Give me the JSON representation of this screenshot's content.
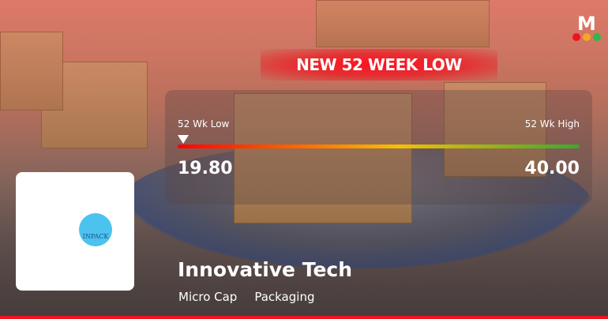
{
  "banner": {
    "title": "NEW 52 WEEK LOW"
  },
  "range": {
    "low_label": "52 Wk Low",
    "high_label": "52 Wk High",
    "low_value": "19.80",
    "high_value": "40.00",
    "current_position_percent": 0
  },
  "company": {
    "name": "Innovative Tech",
    "logo_text": "INPACK",
    "cap": "Micro Cap",
    "sector": "Packaging"
  },
  "brand": {
    "logo_letter": "M",
    "dot_colors": [
      "#f0121e",
      "#f5a623",
      "#2db84b"
    ]
  },
  "colors": {
    "accent": "#f0121e",
    "bar_start": "#ff0000",
    "bar_end": "#3aa830"
  }
}
